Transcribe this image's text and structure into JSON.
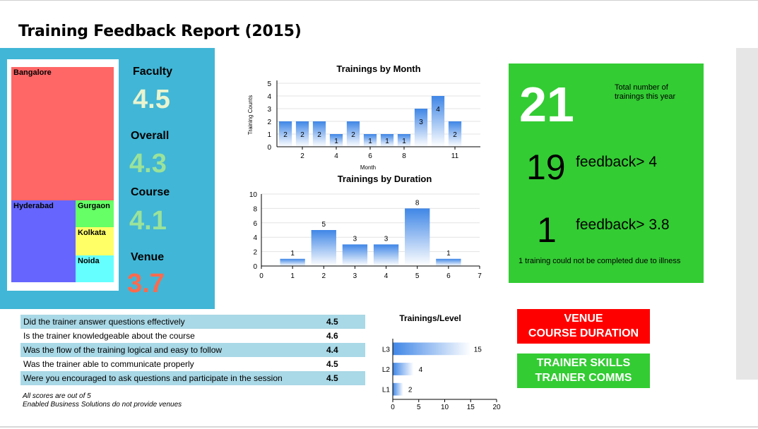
{
  "report": {
    "title": "Training Feedback Report (2015)"
  },
  "treemap": {
    "cells": [
      {
        "label": "Bangalore",
        "color": "#ff6666"
      },
      {
        "label": "Hyderabad",
        "color": "#6666ff"
      },
      {
        "label": "Gurgaon",
        "color": "#66ff66"
      },
      {
        "label": "Kolkata",
        "color": "#ffff66"
      },
      {
        "label": "Noida",
        "color": "#66ffff"
      }
    ]
  },
  "scores": [
    {
      "label": "Faculty",
      "value": "4.5",
      "color": "#eaf4cf"
    },
    {
      "label": "Overall",
      "value": "4.3",
      "color": "#9be39a"
    },
    {
      "label": "Course",
      "value": "4.1",
      "color": "#9be39a"
    },
    {
      "label": "Venue",
      "value": "3.7",
      "color": "#ff6a4d"
    }
  ],
  "chart_data": [
    {
      "type": "bar",
      "title": "Trainings by Month",
      "xlabel": "Month",
      "ylabel": "Training Counts",
      "x": [
        1,
        2,
        3,
        4,
        5,
        6,
        7,
        8,
        9,
        10,
        11,
        12
      ],
      "values": [
        2,
        2,
        2,
        1,
        2,
        1,
        1,
        1,
        3,
        4,
        2,
        0
      ],
      "x_ticks": [
        2,
        4,
        6,
        8,
        11
      ],
      "ylim": [
        0,
        5
      ],
      "y_ticks": [
        0,
        1,
        2,
        3,
        4,
        5
      ],
      "grid": true
    },
    {
      "type": "bar",
      "title": "Trainings by Duration",
      "xlabel": "",
      "ylabel": "",
      "x": [
        1,
        2,
        3,
        4,
        5,
        6
      ],
      "values": [
        1,
        5,
        3,
        3,
        8,
        1
      ],
      "xlim": [
        0,
        7
      ],
      "x_ticks": [
        0,
        1,
        2,
        3,
        4,
        5,
        6,
        7
      ],
      "ylim": [
        0,
        10
      ],
      "y_ticks": [
        0,
        2,
        4,
        6,
        8,
        10
      ],
      "grid": true
    },
    {
      "type": "bar",
      "orientation": "horizontal",
      "title": "Trainings/Level",
      "categories": [
        "L1",
        "L2",
        "L3"
      ],
      "values": [
        2,
        4,
        15
      ],
      "xlim": [
        0,
        20
      ],
      "x_ticks": [
        0,
        5,
        10,
        15,
        20
      ]
    }
  ],
  "summary": {
    "total_number": "21",
    "total_caption": "Total number of trainings this year",
    "count_a": "19",
    "label_a": "feedback> 4",
    "count_b": "1",
    "label_b": "feedback> 3.8",
    "note": "1 training could not be completed due to illness"
  },
  "questions": [
    {
      "text": "Did the trainer answer questions effectively",
      "score": "4.5"
    },
    {
      "text": "Is the trainer knowledgeable about the course",
      "score": "4.6"
    },
    {
      "text": "Was the flow of the training logical and easy to follow",
      "score": "4.4"
    },
    {
      "text": "Was the trainer able to communicate properly",
      "score": "4.5"
    },
    {
      "text": "Were you encouraged to ask questions and participate in the session",
      "score": "4.5"
    }
  ],
  "footnotes": {
    "line1": "All scores are out of 5",
    "line2": "Enabled Business Solutions do not provide venues"
  },
  "badges": {
    "red": {
      "line1": "VENUE",
      "line2": "COURSE DURATION"
    },
    "green": {
      "line1": "TRAINER SKILLS",
      "line2": "TRAINER COMMS"
    }
  }
}
